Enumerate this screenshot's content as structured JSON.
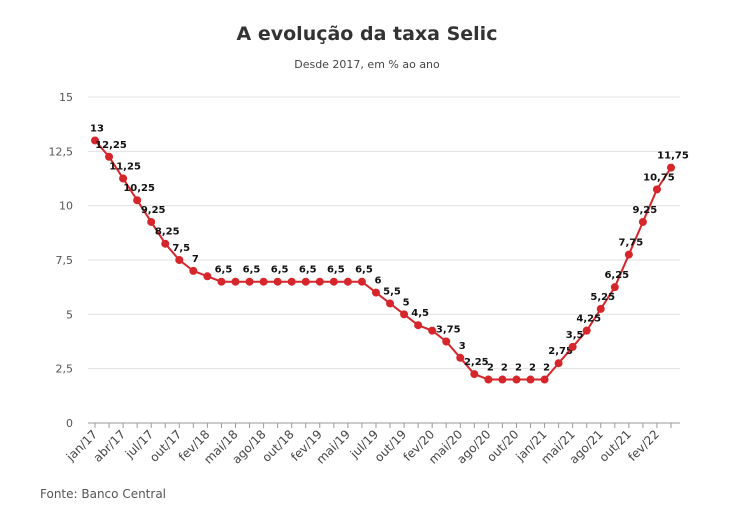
{
  "chart_data": {
    "type": "line",
    "title": "A evolução da taxa Selic",
    "subtitle": "Desde 2017, em % ao ano",
    "source": "Fonte: Banco Central",
    "categories": [
      "jan/17",
      null,
      "abr/17",
      null,
      "jul/17",
      null,
      "out/17",
      null,
      "fev/18",
      null,
      "mai/18",
      null,
      "ago/18",
      null,
      "out/18",
      null,
      "fev/19",
      null,
      "mai/19",
      null,
      "jul/19",
      null,
      "out/19",
      null,
      "fev/20",
      null,
      "mai/20",
      null,
      "ago/20",
      null,
      "out/20",
      null,
      "jan/21",
      null,
      "mai/21",
      null,
      "ago/21",
      null,
      "out/21",
      null,
      "fev/22",
      null
    ],
    "series": [
      {
        "name": "Selic",
        "color": "#d7262b",
        "values": [
          13,
          12.25,
          11.25,
          10.25,
          9.25,
          8.25,
          7.5,
          7,
          6.75,
          6.5,
          6.5,
          6.5,
          6.5,
          6.5,
          6.5,
          6.5,
          6.5,
          6.5,
          6.5,
          6.5,
          6,
          5.5,
          5,
          4.5,
          4.25,
          3.75,
          3,
          2.25,
          2,
          2,
          2,
          2,
          2,
          2.75,
          3.5,
          4.25,
          5.25,
          6.25,
          7.75,
          9.25,
          10.75,
          11.75
        ],
        "value_labels": [
          "13",
          "12,25",
          "11,25",
          "10,25",
          "9,25",
          "8,25",
          "7,5",
          "7",
          null,
          "6,5",
          null,
          "6,5",
          null,
          "6,5",
          null,
          "6,5",
          null,
          "6,5",
          null,
          "6,5",
          "6",
          "5,5",
          "5",
          "4,5",
          null,
          "3,75",
          "3",
          "2,25",
          "2",
          "2",
          "2",
          "2",
          "2",
          "2,75",
          "3,5",
          "4,25",
          "5,25",
          "6,25",
          "7,75",
          "9,25",
          "10,75",
          "11,75"
        ]
      }
    ],
    "ylim": [
      0,
      15
    ],
    "yticks": [
      0,
      {
        "value": 2.5,
        "label": "2,5"
      },
      5,
      {
        "value": 7.5,
        "label": "7,5"
      },
      10,
      {
        "value": 12.5,
        "label": "12,5"
      },
      15
    ],
    "grid": true
  }
}
